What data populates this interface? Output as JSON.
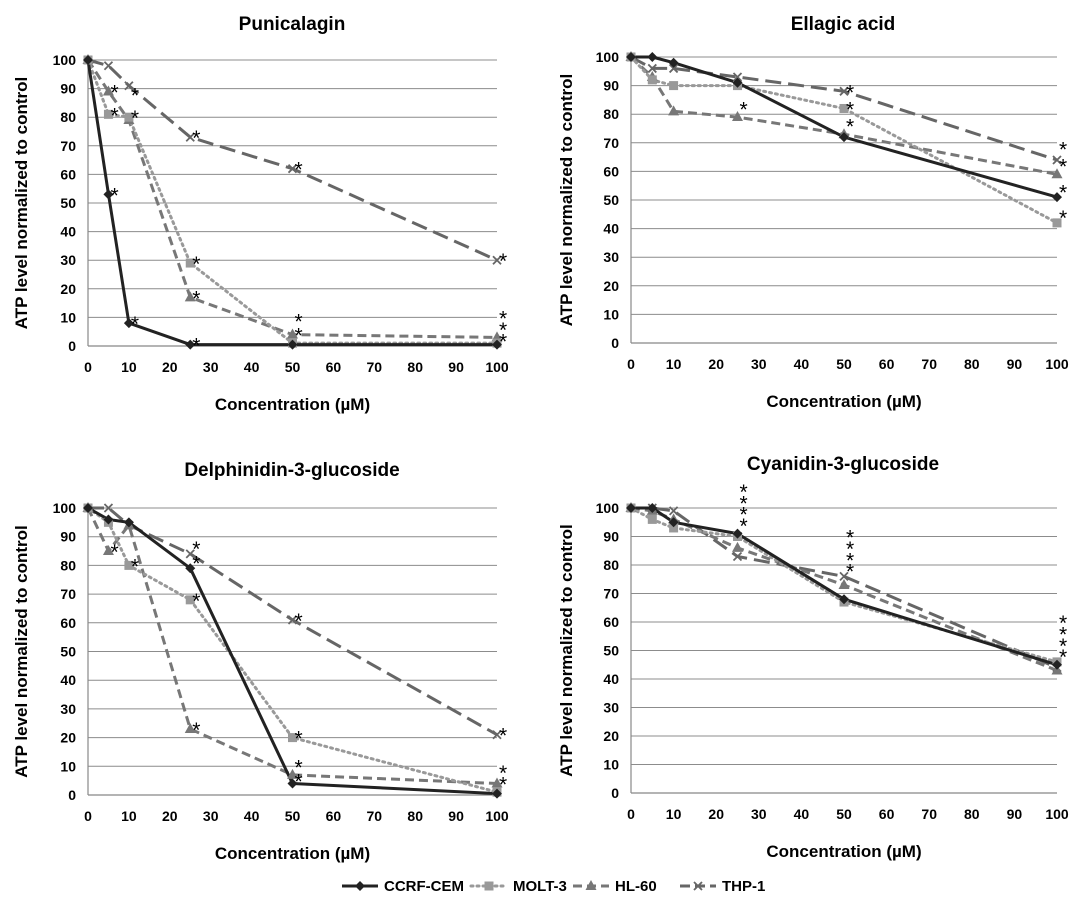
{
  "chart_data": [
    {
      "type": "line",
      "title": "Punicalagin",
      "xlabel": "Concentration  (µM)",
      "ylabel": "ATP level normalized to control",
      "x": [
        0,
        5,
        10,
        25,
        50,
        100
      ],
      "xlim": [
        0,
        100
      ],
      "ylim": [
        0,
        100
      ],
      "xticks": [
        "0",
        "10",
        "20",
        "30",
        "40",
        "50",
        "60",
        "70",
        "80",
        "90",
        "100"
      ],
      "yticks": [
        "0",
        "10",
        "20",
        "30",
        "40",
        "50",
        "60",
        "70",
        "80",
        "90",
        "100"
      ],
      "grid": true,
      "series": [
        {
          "name": "CCRF-CEM",
          "values": [
            100,
            53,
            8,
            0.5,
            0.5,
            0.5
          ]
        },
        {
          "name": "MOLT-3",
          "values": [
            100,
            81,
            80,
            29,
            1,
            1
          ]
        },
        {
          "name": "HL-60",
          "values": [
            100,
            89,
            79,
            17,
            4,
            3
          ]
        },
        {
          "name": "THP-1",
          "values": [
            100,
            98,
            91,
            73,
            62,
            30
          ]
        }
      ],
      "annotations": [
        {
          "x": 5,
          "y": 53,
          "text": "*"
        },
        {
          "x": 5,
          "y": 81,
          "text": "*"
        },
        {
          "x": 5,
          "y": 89,
          "text": "*"
        },
        {
          "x": 10,
          "y": 8,
          "text": "*"
        },
        {
          "x": 10,
          "y": 80,
          "text": "*"
        },
        {
          "x": 10,
          "y": 88,
          "text": "*"
        },
        {
          "x": 25,
          "y": 0.5,
          "text": "*"
        },
        {
          "x": 25,
          "y": 17,
          "text": "*"
        },
        {
          "x": 25,
          "y": 29,
          "text": "*"
        },
        {
          "x": 25,
          "y": 73,
          "text": "*"
        },
        {
          "x": 50,
          "y": 62,
          "text": "*"
        },
        {
          "x": 50,
          "y": 9,
          "text": "*"
        },
        {
          "x": 50,
          "y": 4,
          "text": "*"
        },
        {
          "x": 100,
          "y": 30,
          "text": "*"
        },
        {
          "x": 100,
          "y": 10,
          "text": "*"
        },
        {
          "x": 100,
          "y": 6,
          "text": "*"
        },
        {
          "x": 100,
          "y": 2,
          "text": "*"
        }
      ]
    },
    {
      "type": "line",
      "title": "Ellagic acid",
      "xlabel": "Concentration  (µM)",
      "ylabel": "ATP level normalized to control",
      "x": [
        0,
        5,
        10,
        25,
        50,
        100
      ],
      "xlim": [
        0,
        100
      ],
      "ylim": [
        0,
        100
      ],
      "xticks": [
        "0",
        "10",
        "20",
        "30",
        "40",
        "50",
        "60",
        "70",
        "80",
        "90",
        "100"
      ],
      "yticks": [
        "0",
        "10",
        "20",
        "30",
        "40",
        "50",
        "60",
        "70",
        "80",
        "90",
        "100"
      ],
      "grid": true,
      "series": [
        {
          "name": "CCRF-CEM",
          "values": [
            100,
            100,
            98,
            91,
            72,
            51
          ]
        },
        {
          "name": "MOLT-3",
          "values": [
            100,
            92,
            90,
            90,
            82,
            42
          ]
        },
        {
          "name": "HL-60",
          "values": [
            100,
            93,
            81,
            79,
            73,
            59
          ]
        },
        {
          "name": "THP-1",
          "values": [
            100,
            96,
            96,
            93,
            88,
            64
          ]
        }
      ],
      "annotations": [
        {
          "x": 50,
          "y": 88,
          "text": "*"
        },
        {
          "x": 50,
          "y": 82,
          "text": "*"
        },
        {
          "x": 50,
          "y": 76,
          "text": "*"
        },
        {
          "x": 25,
          "y": 82,
          "text": "*"
        },
        {
          "x": 100,
          "y": 68,
          "text": "*"
        },
        {
          "x": 100,
          "y": 62,
          "text": "*"
        },
        {
          "x": 100,
          "y": 53,
          "text": "*"
        },
        {
          "x": 100,
          "y": 44,
          "text": "*"
        }
      ]
    },
    {
      "type": "line",
      "title": "Delphinidin-3-glucoside",
      "xlabel": "Concentration  (µM)",
      "ylabel": "ATP level normalized to control",
      "x": [
        0,
        5,
        10,
        25,
        50,
        100
      ],
      "xlim": [
        0,
        100
      ],
      "ylim": [
        0,
        100
      ],
      "xticks": [
        "0",
        "10",
        "20",
        "30",
        "40",
        "50",
        "60",
        "70",
        "80",
        "90",
        "100"
      ],
      "yticks": [
        "0",
        "10",
        "20",
        "30",
        "40",
        "50",
        "60",
        "70",
        "80",
        "90",
        "100"
      ],
      "grid": true,
      "series": [
        {
          "name": "CCRF-CEM",
          "values": [
            100,
            96,
            95,
            79,
            4,
            0.5
          ]
        },
        {
          "name": "MOLT-3",
          "values": [
            100,
            95,
            80,
            68,
            20,
            1
          ]
        },
        {
          "name": "HL-60",
          "values": [
            100,
            85,
            94,
            23,
            7,
            4
          ]
        },
        {
          "name": "THP-1",
          "values": [
            100,
            100,
            94,
            84,
            61,
            21
          ]
        }
      ],
      "annotations": [
        {
          "x": 5,
          "y": 85,
          "text": "*"
        },
        {
          "x": 10,
          "y": 80,
          "text": "*"
        },
        {
          "x": 25,
          "y": 86,
          "text": "*"
        },
        {
          "x": 25,
          "y": 81,
          "text": "*"
        },
        {
          "x": 25,
          "y": 68,
          "text": "*"
        },
        {
          "x": 25,
          "y": 23,
          "text": "*"
        },
        {
          "x": 50,
          "y": 61,
          "text": "*"
        },
        {
          "x": 50,
          "y": 20,
          "text": "*"
        },
        {
          "x": 50,
          "y": 10,
          "text": "*"
        },
        {
          "x": 50,
          "y": 5,
          "text": "*"
        },
        {
          "x": 100,
          "y": 21,
          "text": "*"
        },
        {
          "x": 100,
          "y": 8,
          "text": "*"
        },
        {
          "x": 100,
          "y": 4,
          "text": "*"
        }
      ]
    },
    {
      "type": "line",
      "title": "Cyanidin-3-glucoside",
      "xlabel": "Concentration  (µM)",
      "ylabel": "ATP level normalized to control",
      "x": [
        0,
        5,
        10,
        25,
        50,
        100
      ],
      "xlim": [
        0,
        100
      ],
      "ylim": [
        0,
        100
      ],
      "xticks": [
        "0",
        "10",
        "20",
        "30",
        "40",
        "50",
        "60",
        "70",
        "80",
        "90",
        "100"
      ],
      "yticks": [
        "0",
        "10",
        "20",
        "30",
        "40",
        "50",
        "60",
        "70",
        "80",
        "90",
        "100"
      ],
      "grid": true,
      "series": [
        {
          "name": "CCRF-CEM",
          "values": [
            100,
            100,
            95,
            91,
            68,
            45
          ]
        },
        {
          "name": "MOLT-3",
          "values": [
            100,
            96,
            93,
            90,
            67,
            46
          ]
        },
        {
          "name": "HL-60",
          "values": [
            100,
            99,
            96,
            86,
            73,
            43
          ]
        },
        {
          "name": "THP-1",
          "values": [
            100,
            100,
            99,
            83,
            76,
            44
          ]
        }
      ],
      "annotations": [
        {
          "x": 25,
          "y": 106,
          "text": "*"
        },
        {
          "x": 25,
          "y": 102,
          "text": "*"
        },
        {
          "x": 25,
          "y": 98,
          "text": "*"
        },
        {
          "x": 25,
          "y": 94,
          "text": "*"
        },
        {
          "x": 50,
          "y": 90,
          "text": "*"
        },
        {
          "x": 50,
          "y": 86,
          "text": "*"
        },
        {
          "x": 50,
          "y": 82,
          "text": "*"
        },
        {
          "x": 50,
          "y": 78,
          "text": "*"
        },
        {
          "x": 100,
          "y": 60,
          "text": "*"
        },
        {
          "x": 100,
          "y": 56,
          "text": "*"
        },
        {
          "x": 100,
          "y": 52,
          "text": "*"
        },
        {
          "x": 100,
          "y": 48,
          "text": "*"
        }
      ]
    }
  ],
  "legend": {
    "placement": "bottom-center",
    "items": [
      {
        "name": "CCRF-CEM",
        "color": "#222222",
        "dash": "solid",
        "marker": "diamond"
      },
      {
        "name": "MOLT-3",
        "color": "#999999",
        "dash": "dotted",
        "marker": "square"
      },
      {
        "name": "HL-60",
        "color": "#777777",
        "dash": "dashed",
        "marker": "triangle"
      },
      {
        "name": "THP-1",
        "color": "#666666",
        "dash": "long-dash",
        "marker": "x"
      }
    ]
  }
}
